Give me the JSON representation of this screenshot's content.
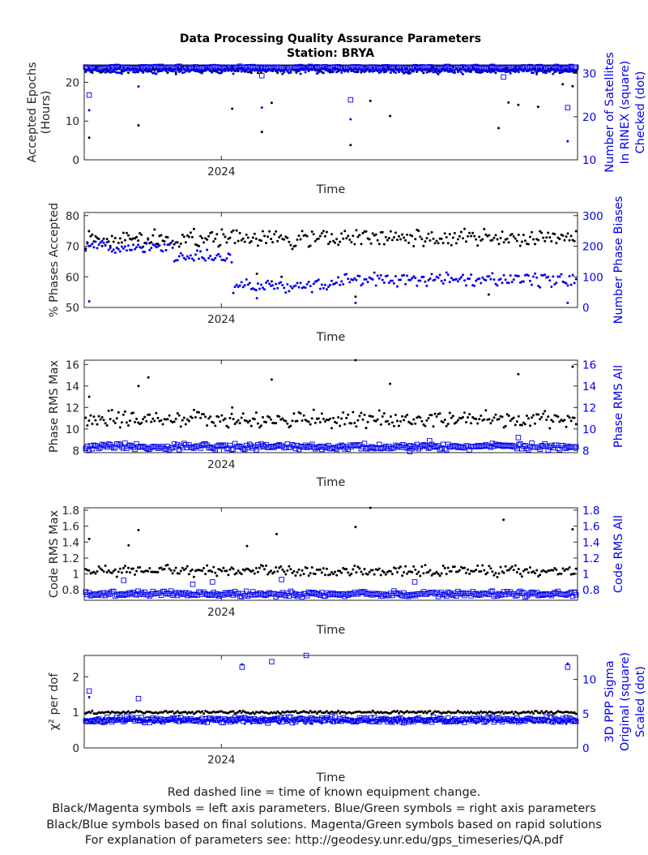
{
  "title": "Data Processing Quality Assurance Parameters",
  "subtitle": "Station: BRYA",
  "colors": {
    "left": "#000000",
    "right": "#0000ee",
    "axis": "#262626"
  },
  "chart_data": [
    {
      "type": "scatter",
      "xlabel": "Time",
      "xtick_label": "2024",
      "ylabel_left": [
        "Accepted Epochs",
        "(Hours)"
      ],
      "ylabel_right": [
        "Number of Satellites",
        "In RINEX (square)",
        "Checked (dot)"
      ],
      "ylim_left": [
        0,
        24.5
      ],
      "ylim_right": [
        10,
        32
      ],
      "yticks_left": [
        0,
        10,
        20
      ],
      "yticks_right": [
        10,
        20,
        30
      ],
      "series": [
        {
          "name": "Accepted Epochs",
          "axis": "left",
          "marker": "dot",
          "color": "#000000",
          "base": 23.2,
          "spread": 0.9,
          "outliers": [
            [
              0.01,
              5.7
            ],
            [
              0.11,
              8.9
            ],
            [
              0.3,
              13.2
            ],
            [
              0.36,
              7.2
            ],
            [
              0.38,
              14.7
            ],
            [
              0.43,
              22.5
            ],
            [
              0.54,
              3.8
            ],
            [
              0.58,
              15.2
            ],
            [
              0.62,
              11.3
            ],
            [
              0.84,
              8.2
            ],
            [
              0.86,
              14.8
            ],
            [
              0.88,
              14.2
            ],
            [
              0.92,
              13.7
            ],
            [
              0.97,
              19.5
            ],
            [
              0.99,
              19.0
            ]
          ]
        },
        {
          "name": "Satellites In RINEX",
          "axis": "right",
          "marker": "square",
          "color": "#0000ee",
          "base": 31.4,
          "spread": 0.3,
          "outliers": [
            [
              0.01,
              25.0
            ],
            [
              0.36,
              29.5
            ],
            [
              0.54,
              23.9
            ],
            [
              0.85,
              29.2
            ],
            [
              0.98,
              22.1
            ]
          ]
        },
        {
          "name": "Satellites Checked",
          "axis": "right",
          "marker": "dot",
          "color": "#0000ee",
          "base": 30.6,
          "spread": 0.8,
          "outliers": [
            [
              0.01,
              21.5
            ],
            [
              0.11,
              27.0
            ],
            [
              0.36,
              22.1
            ],
            [
              0.54,
              19.4
            ],
            [
              0.98,
              14.3
            ]
          ]
        }
      ]
    },
    {
      "type": "scatter",
      "xlabel": "Time",
      "xtick_label": "2024",
      "ylabel_left": [
        "% Phases Accepted"
      ],
      "ylabel_right": [
        "Number Phase Biases"
      ],
      "ylim_left": [
        50,
        81
      ],
      "ylim_right": [
        0,
        310
      ],
      "yticks_left": [
        50,
        60,
        70,
        80
      ],
      "yticks_right": [
        0,
        100,
        200,
        300
      ],
      "series": [
        {
          "name": "% Phases Accepted",
          "axis": "left",
          "marker": "dot",
          "color": "#000000",
          "base": 72.5,
          "spread": 3.5,
          "outliers": [
            [
              0.35,
              61.0
            ],
            [
              0.38,
              58.5
            ],
            [
              0.4,
              60.0
            ],
            [
              0.55,
              53.5
            ],
            [
              0.82,
              54.2
            ]
          ]
        },
        {
          "name": "Number Phase Biases",
          "axis": "right",
          "marker": "dot",
          "color": "#0000ee",
          "base_segments": [
            [
              0.0,
              0.18,
              200
            ],
            [
              0.18,
              0.3,
              165
            ],
            [
              0.3,
              0.5,
              70
            ],
            [
              0.5,
              1.0,
              90
            ]
          ],
          "spread": 25,
          "outliers": [
            [
              0.01,
              20
            ],
            [
              0.35,
              30
            ],
            [
              0.55,
              15
            ],
            [
              0.98,
              15
            ]
          ]
        }
      ]
    },
    {
      "type": "scatter",
      "xlabel": "Time",
      "xtick_label": "2024",
      "ylabel_left": [
        "Phase RMS Max"
      ],
      "ylabel_right": [
        "Phase RMS All"
      ],
      "ylim_left": [
        7.8,
        16.4
      ],
      "ylim_right": [
        7.8,
        16.4
      ],
      "yticks_left": [
        8,
        10,
        12,
        14,
        16
      ],
      "yticks_right": [
        8,
        10,
        12,
        14,
        16
      ],
      "series": [
        {
          "name": "Phase RMS Max",
          "axis": "left",
          "marker": "dot",
          "color": "#000000",
          "base": 10.9,
          "spread": 0.9,
          "outliers": [
            [
              0.01,
              13.0
            ],
            [
              0.11,
              14.0
            ],
            [
              0.13,
              14.8
            ],
            [
              0.3,
              12.0
            ],
            [
              0.38,
              14.6
            ],
            [
              0.55,
              16.4
            ],
            [
              0.62,
              14.2
            ],
            [
              0.88,
              15.1
            ],
            [
              0.99,
              15.8
            ]
          ]
        },
        {
          "name": "Phase RMS All",
          "axis": "right",
          "marker": "square",
          "color": "#0000ee",
          "base": 8.35,
          "spread": 0.35,
          "outliers": [
            [
              0.66,
              7.9
            ],
            [
              0.7,
              8.9
            ],
            [
              0.88,
              9.2
            ]
          ]
        }
      ]
    },
    {
      "type": "scatter",
      "xlabel": "Time",
      "xtick_label": "2024",
      "ylabel_left": [
        "Code RMS Max"
      ],
      "ylabel_right": [
        "Code RMS All"
      ],
      "ylim_left": [
        0.67,
        1.83
      ],
      "ylim_right": [
        0.67,
        1.83
      ],
      "yticks_left": [
        0.8,
        1,
        1.2,
        1.4,
        1.6,
        1.8
      ],
      "yticks_right": [
        0.8,
        1,
        1.2,
        1.4,
        1.6,
        1.8
      ],
      "series": [
        {
          "name": "Code RMS Max",
          "axis": "left",
          "marker": "dot",
          "color": "#000000",
          "base": 1.04,
          "spread": 0.08,
          "outliers": [
            [
              0.01,
              1.44
            ],
            [
              0.09,
              1.36
            ],
            [
              0.11,
              1.55
            ],
            [
              0.33,
              1.35
            ],
            [
              0.39,
              1.5
            ],
            [
              0.55,
              1.59
            ],
            [
              0.58,
              1.83
            ],
            [
              0.85,
              1.68
            ],
            [
              0.99,
              1.56
            ]
          ]
        },
        {
          "name": "Code RMS All",
          "axis": "right",
          "marker": "square",
          "color": "#0000ee",
          "base": 0.75,
          "spread": 0.04,
          "outliers": [
            [
              0.08,
              0.92
            ],
            [
              0.22,
              0.87
            ],
            [
              0.26,
              0.9
            ],
            [
              0.4,
              0.93
            ],
            [
              0.67,
              0.9
            ]
          ]
        }
      ]
    },
    {
      "type": "scatter",
      "xlabel": "Time",
      "xtick_label": "2024",
      "ylabel_left": [
        "χ² per dof"
      ],
      "ylabel_right": [
        "3D PPP Sigma",
        "Original (square)",
        "Scaled (dot)"
      ],
      "ylim_left": [
        0,
        2.6
      ],
      "ylim_right": [
        0,
        13.5
      ],
      "yticks_left": [
        0,
        1,
        2
      ],
      "yticks_right": [
        0,
        5,
        10
      ],
      "series": [
        {
          "name": "χ² per dof",
          "axis": "left",
          "marker": "dot",
          "color": "#000000",
          "base": 1.0,
          "spread": 0.05,
          "outliers": []
        },
        {
          "name": "3D PPP Sigma Original",
          "axis": "right",
          "marker": "square",
          "color": "#0000ee",
          "base": 4.1,
          "spread": 0.5,
          "outliers": [
            [
              0.01,
              8.3
            ],
            [
              0.11,
              7.2
            ],
            [
              0.32,
              11.8
            ],
            [
              0.38,
              12.6
            ],
            [
              0.45,
              13.5
            ],
            [
              0.98,
              11.8
            ]
          ]
        },
        {
          "name": "3D PPP Sigma Scaled",
          "axis": "right",
          "marker": "dot",
          "color": "#0000ee",
          "base": 4.0,
          "spread": 0.5,
          "outliers": [
            [
              0.01,
              7.4
            ],
            [
              0.32,
              12.2
            ],
            [
              0.98,
              12.3
            ]
          ]
        }
      ]
    }
  ],
  "footer": [
    "Red dashed line = time of known equipment change.",
    "Black/Magenta symbols = left axis parameters. Blue/Green symbols = right axis parameters",
    "Black/Blue symbols based on final solutions.  Magenta/Green symbols based on rapid solutions",
    "For explanation of parameters see: http://geodesy.unr.edu/gps_timeseries/QA.pdf"
  ]
}
